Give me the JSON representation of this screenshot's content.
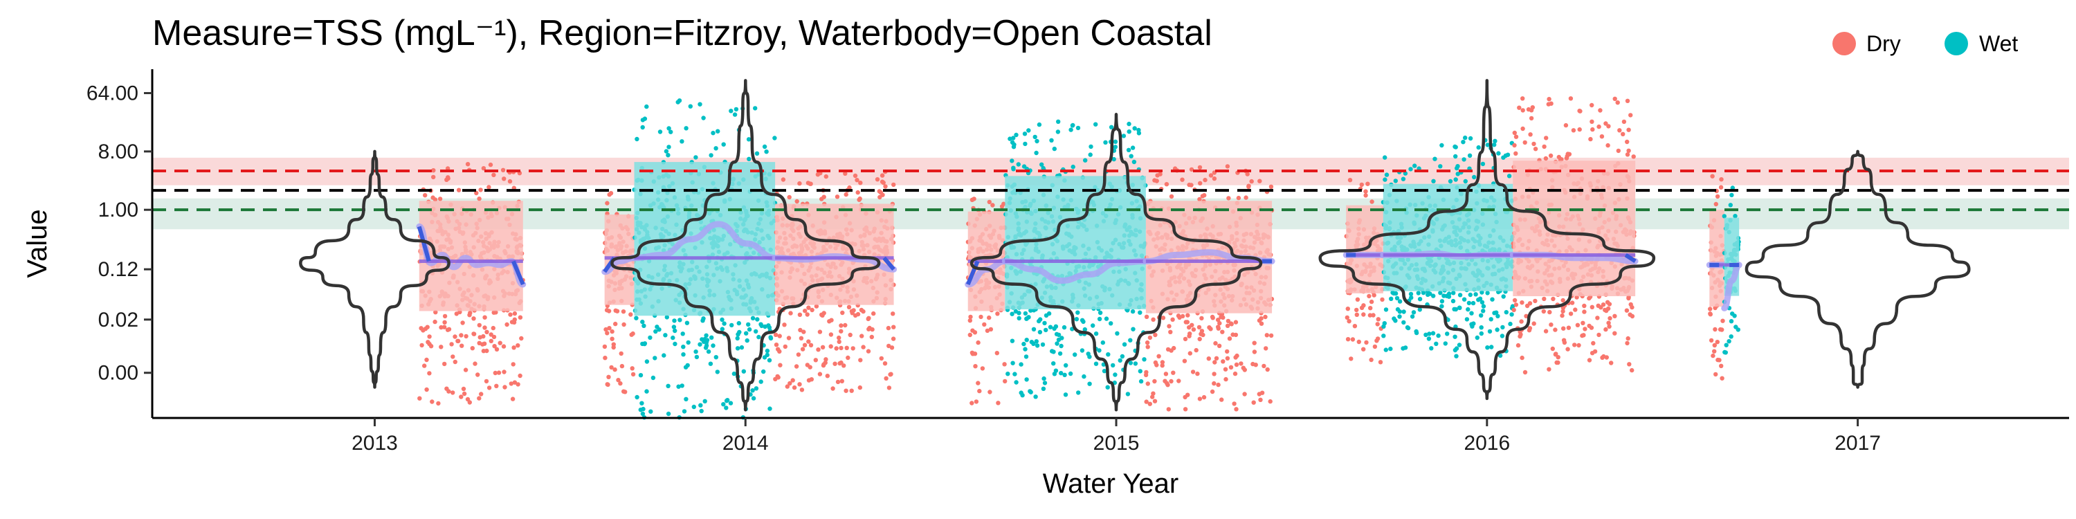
{
  "chart_data": {
    "type": "violin",
    "title": "Measure=TSS (mgL⁻¹), Region=Fitzroy, Waterbody=Open Coastal",
    "xlabel": "Water Year",
    "ylabel": "Value",
    "y_scale": "log",
    "yticks": [
      {
        "value": 0.003,
        "label": "0.00"
      },
      {
        "value": 0.02,
        "label": "0.02"
      },
      {
        "value": 0.12,
        "label": "0.12"
      },
      {
        "value": 1.0,
        "label": "1.00"
      },
      {
        "value": 8.0,
        "label": "8.00"
      },
      {
        "value": 64.0,
        "label": "64.00"
      }
    ],
    "ylim": [
      0.0006,
      150
    ],
    "x_categories": [
      "2013",
      "2014",
      "2015",
      "2016",
      "2017"
    ],
    "xlim": [
      2012.4,
      2017.57
    ],
    "legend": {
      "position": "top-right",
      "entries": [
        {
          "label": "Dry",
          "color": "#F8766D"
        },
        {
          "label": "Wet",
          "color": "#00BFC4"
        }
      ]
    },
    "reference_lines": [
      {
        "value": 4.0,
        "color": "#E31A1C",
        "style": "dashed",
        "band": [
          2.4,
          6.4
        ],
        "band_color": "#F8C9C9"
      },
      {
        "value": 2.0,
        "color": "#000000",
        "style": "dashed"
      },
      {
        "value": 1.0,
        "color": "#1B7837",
        "style": "dashed",
        "band": [
          0.5,
          1.5
        ],
        "band_color": "#CFE5DD"
      }
    ],
    "season_colors": {
      "Dry": "#F8766D",
      "Wet": "#00BFC4",
      "Dry_light": "#FBBCB8",
      "Wet_light": "#80DFE1"
    },
    "smooth_colors": {
      "outer": "#A9A3F5",
      "inner": "#8860E0",
      "edge": "#3B5BDB"
    },
    "water_years": [
      {
        "year": "2013",
        "violin_scale": 0.2,
        "violin_shape": [
          {
            "y": 0.0018,
            "w": 0.0
          },
          {
            "y": 0.0025,
            "w": 0.02
          },
          {
            "y": 0.004,
            "w": 0.05
          },
          {
            "y": 0.008,
            "w": 0.08
          },
          {
            "y": 0.02,
            "w": 0.15
          },
          {
            "y": 0.05,
            "w": 0.35
          },
          {
            "y": 0.09,
            "w": 0.7
          },
          {
            "y": 0.15,
            "w": 1.0
          },
          {
            "y": 0.22,
            "w": 0.8
          },
          {
            "y": 0.5,
            "w": 0.35
          },
          {
            "y": 1.0,
            "w": 0.15
          },
          {
            "y": 2.5,
            "w": 0.06
          },
          {
            "y": 5.0,
            "w": 0.025
          },
          {
            "y": 8.0,
            "w": 0.0
          }
        ],
        "seasons": [
          {
            "season": "Dry",
            "start": 2013.12,
            "end": 2013.4,
            "lo": 0.001,
            "hi": 8.0,
            "median": 0.16,
            "smooth": [
              0.55,
              0.15,
              0.2,
              0.13,
              0.18,
              0.14,
              0.15,
              0.14,
              0.16,
              0.07
            ]
          }
        ]
      },
      {
        "year": "2014",
        "violin_scale": 0.36,
        "violin_shape": [
          {
            "y": 0.0008,
            "w": 0.0
          },
          {
            "y": 0.0015,
            "w": 0.02
          },
          {
            "y": 0.003,
            "w": 0.06
          },
          {
            "y": 0.008,
            "w": 0.12
          },
          {
            "y": 0.02,
            "w": 0.25
          },
          {
            "y": 0.05,
            "w": 0.45
          },
          {
            "y": 0.1,
            "w": 0.8
          },
          {
            "y": 0.15,
            "w": 1.0
          },
          {
            "y": 0.22,
            "w": 0.8
          },
          {
            "y": 0.5,
            "w": 0.45
          },
          {
            "y": 1.0,
            "w": 0.3
          },
          {
            "y": 3.0,
            "w": 0.12
          },
          {
            "y": 10.0,
            "w": 0.05
          },
          {
            "y": 40.0,
            "w": 0.02
          },
          {
            "y": 100.0,
            "w": 0.0
          }
        ],
        "seasons": [
          {
            "season": "Dry",
            "start": 2013.62,
            "end": 2013.7,
            "lo": 0.0015,
            "hi": 3.0,
            "median": 0.18,
            "smooth": [
              0.11,
              0.16,
              0.18
            ]
          },
          {
            "season": "Wet",
            "start": 2013.7,
            "end": 2014.08,
            "lo": 0.0005,
            "hi": 90.0,
            "median": 0.18,
            "smooth": [
              0.18,
              0.2,
              0.35,
              0.6,
              0.3,
              0.18
            ]
          },
          {
            "season": "Dry",
            "start": 2014.08,
            "end": 2014.4,
            "lo": 0.0015,
            "hi": 6.0,
            "median": 0.18,
            "smooth": [
              0.18,
              0.17,
              0.19,
              0.17,
              0.12
            ]
          }
        ]
      },
      {
        "year": "2015",
        "violin_scale": 0.39,
        "violin_shape": [
          {
            "y": 0.0008,
            "w": 0.0
          },
          {
            "y": 0.0015,
            "w": 0.02
          },
          {
            "y": 0.003,
            "w": 0.06
          },
          {
            "y": 0.008,
            "w": 0.15
          },
          {
            "y": 0.02,
            "w": 0.3
          },
          {
            "y": 0.05,
            "w": 0.55
          },
          {
            "y": 0.1,
            "w": 0.85
          },
          {
            "y": 0.15,
            "w": 1.0
          },
          {
            "y": 0.22,
            "w": 0.8
          },
          {
            "y": 0.5,
            "w": 0.4
          },
          {
            "y": 1.0,
            "w": 0.2
          },
          {
            "y": 3.0,
            "w": 0.08
          },
          {
            "y": 10.0,
            "w": 0.03
          },
          {
            "y": 30.0,
            "w": 0.0
          }
        ],
        "seasons": [
          {
            "season": "Dry",
            "start": 2014.6,
            "end": 2014.7,
            "lo": 0.001,
            "hi": 4.0,
            "median": 0.16,
            "smooth": [
              0.07,
              0.12,
              0.16
            ]
          },
          {
            "season": "Wet",
            "start": 2014.7,
            "end": 2015.08,
            "lo": 0.0012,
            "hi": 40.0,
            "median": 0.16,
            "smooth": [
              0.16,
              0.12,
              0.08,
              0.1,
              0.15,
              0.16
            ]
          },
          {
            "season": "Dry",
            "start": 2015.08,
            "end": 2015.42,
            "lo": 0.0008,
            "hi": 8.0,
            "median": 0.16,
            "smooth": [
              0.16,
              0.2,
              0.22,
              0.18,
              0.16
            ]
          }
        ]
      },
      {
        "year": "2016",
        "violin_scale": 0.45,
        "violin_shape": [
          {
            "y": 0.0012,
            "w": 0.0
          },
          {
            "y": 0.002,
            "w": 0.02
          },
          {
            "y": 0.004,
            "w": 0.05
          },
          {
            "y": 0.01,
            "w": 0.12
          },
          {
            "y": 0.02,
            "w": 0.25
          },
          {
            "y": 0.05,
            "w": 0.5
          },
          {
            "y": 0.1,
            "w": 0.8
          },
          {
            "y": 0.18,
            "w": 1.0
          },
          {
            "y": 0.3,
            "w": 0.7
          },
          {
            "y": 0.6,
            "w": 0.35
          },
          {
            "y": 1.5,
            "w": 0.12
          },
          {
            "y": 4.0,
            "w": 0.05
          },
          {
            "y": 15.0,
            "w": 0.02
          },
          {
            "y": 100.0,
            "w": 0.0
          }
        ],
        "seasons": [
          {
            "season": "Dry",
            "start": 2015.62,
            "end": 2015.72,
            "lo": 0.004,
            "hi": 5.0,
            "median": 0.2,
            "smooth": [
              0.2,
              0.2,
              0.2
            ]
          },
          {
            "season": "Wet",
            "start": 2015.72,
            "end": 2016.07,
            "lo": 0.005,
            "hi": 20.0,
            "median": 0.2,
            "smooth": [
              0.2,
              0.2,
              0.21,
              0.19,
              0.2,
              0.2
            ]
          },
          {
            "season": "Dry",
            "start": 2016.07,
            "end": 2016.4,
            "lo": 0.003,
            "hi": 90.0,
            "median": 0.2,
            "smooth": [
              0.2,
              0.2,
              0.18,
              0.18,
              0.16
            ]
          }
        ]
      },
      {
        "year": "2017",
        "violin_scale": 0.3,
        "violin_shape": [
          {
            "y": 0.0018,
            "w": 0.0
          },
          {
            "y": 0.0022,
            "w": 0.04
          },
          {
            "y": 0.003,
            "w": 0.04
          },
          {
            "y": 0.005,
            "w": 0.06
          },
          {
            "y": 0.01,
            "w": 0.15
          },
          {
            "y": 0.03,
            "w": 0.35
          },
          {
            "y": 0.07,
            "w": 0.7
          },
          {
            "y": 0.12,
            "w": 1.0
          },
          {
            "y": 0.2,
            "w": 0.85
          },
          {
            "y": 0.4,
            "w": 0.45
          },
          {
            "y": 1.0,
            "w": 0.25
          },
          {
            "y": 3.0,
            "w": 0.12
          },
          {
            "y": 6.0,
            "w": 0.05
          },
          {
            "y": 8.0,
            "w": 0.0
          }
        ],
        "seasons": [
          {
            "season": "Dry",
            "start": 2016.6,
            "end": 2016.64,
            "lo": 0.002,
            "hi": 5.0,
            "median": 0.14,
            "smooth": [
              0.14,
              0.14
            ]
          },
          {
            "season": "Wet",
            "start": 2016.64,
            "end": 2016.68,
            "lo": 0.006,
            "hi": 3.0,
            "median": 0.14,
            "smooth": [
              0.03,
              0.08,
              0.14
            ]
          }
        ]
      }
    ]
  }
}
